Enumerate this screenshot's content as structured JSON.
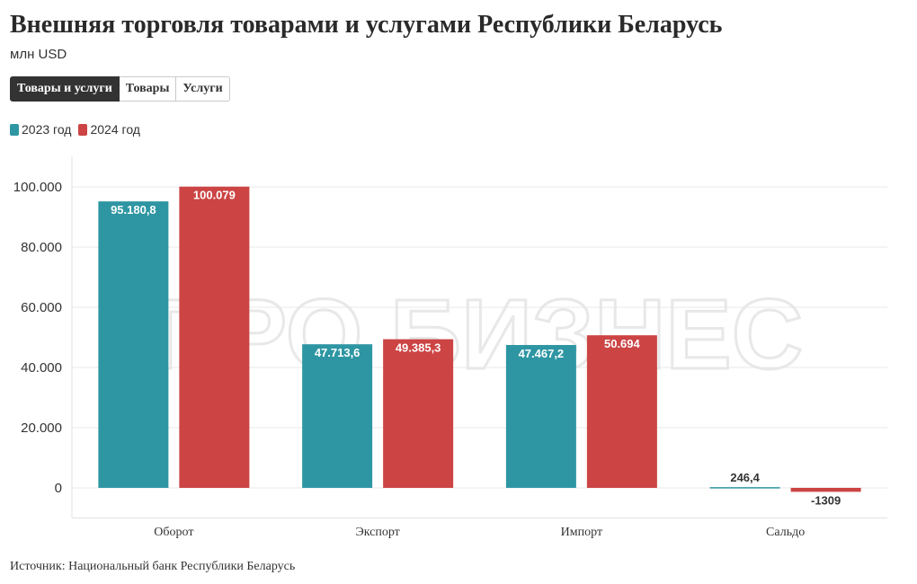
{
  "header": {
    "title": "Внешняя торговля товарами и услугами Республики Беларусь",
    "subtitle": "млн USD"
  },
  "tabs": [
    {
      "label": "Товары и услуги",
      "active": true
    },
    {
      "label": "Товары",
      "active": false
    },
    {
      "label": "Услуги",
      "active": false
    }
  ],
  "legend": [
    {
      "label": "2023 год",
      "color": "#2e96a3"
    },
    {
      "label": "2024 год",
      "color": "#cc4444"
    }
  ],
  "watermark": "ПРО БИЗНЕС",
  "source": "Источник: Национальный банк Республики Беларусь",
  "chart_data": {
    "type": "bar",
    "categories": [
      "Оборот",
      "Экспорт",
      "Импорт",
      "Сальдо"
    ],
    "series": [
      {
        "name": "2023 год",
        "color": "#2e96a3",
        "values": [
          95180.8,
          47713.6,
          47467.2,
          246.4
        ],
        "labels": [
          "95.180,8",
          "47.713,6",
          "47.467,2",
          "246,4"
        ]
      },
      {
        "name": "2024 год",
        "color": "#cc4444",
        "values": [
          100079,
          49385.3,
          50694,
          -1309
        ],
        "labels": [
          "100.079",
          "49.385,3",
          "50.694",
          "-1309"
        ]
      }
    ],
    "ylim": [
      -10000,
      110000
    ],
    "yticks": [
      0,
      20000,
      40000,
      60000,
      80000,
      100000
    ],
    "ytick_labels": [
      "0",
      "20.000",
      "40.000",
      "60.000",
      "80.000",
      "100.000"
    ],
    "grid": true,
    "legend_position": "top-left"
  }
}
